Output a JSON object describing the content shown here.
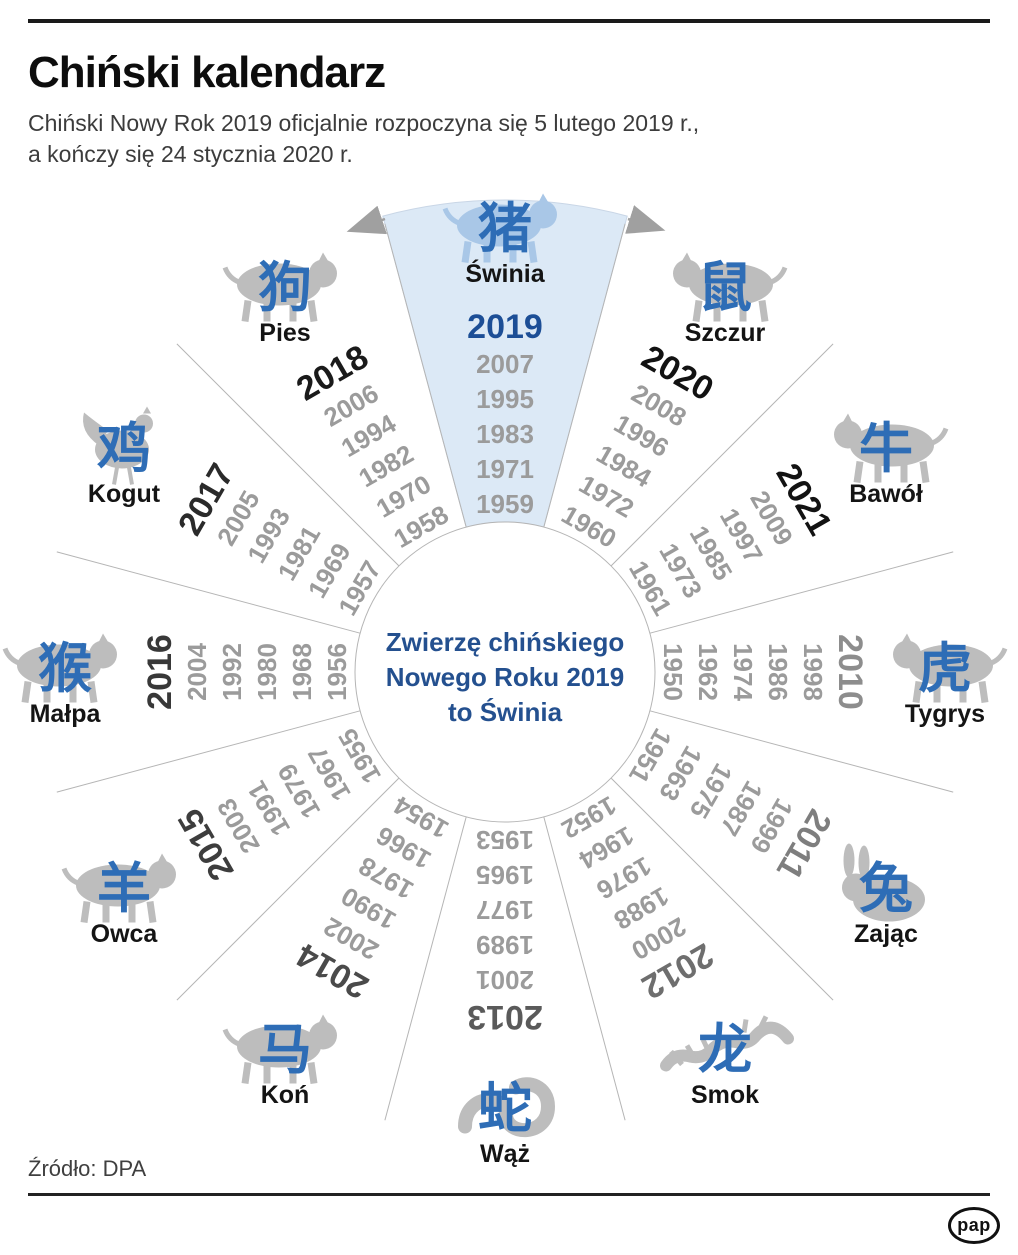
{
  "header": {
    "title": "Chiński kalendarz",
    "subtitle_line1": "Chiński Nowy Rok 2019 oficjalnie rozpoczyna się 5 lutego 2019 r.,",
    "subtitle_line2": "a kończy się 24 stycznia 2020 r."
  },
  "center": {
    "line1": "Zwierzę chińskiego",
    "line2": "Nowego Roku 2019",
    "line3": "to Świnia"
  },
  "footer": {
    "source": "Źródło: DPA",
    "logo": "pap"
  },
  "colors": {
    "accent_blue": "#2e6db6",
    "dark_blue": "#24508f",
    "wedge_blue": "#dce9f6",
    "pig_silhouette_blue": "#a9c7e7",
    "silhouette_gray": "#bdbdbd",
    "year_gray": "#9b9b9b",
    "line_gray": "#b5b5b5",
    "arrow_gray": "#a0a0a0"
  },
  "wheel": {
    "type": "radial-calendar-wheel",
    "highlighted_animal": "Świnia",
    "sectors": [
      {
        "name": "Świnia",
        "chinese": "猪",
        "angle": 0,
        "lead_year": "2019",
        "lead_color": "#1c4e96",
        "years": [
          "2007",
          "1995",
          "1983",
          "1971",
          "1959"
        ],
        "highlight": true,
        "silhouette": "pig"
      },
      {
        "name": "Szczur",
        "chinese": "鼠",
        "angle": 30,
        "lead_year": "2020",
        "lead_color": "#121212",
        "years": [
          "2008",
          "1996",
          "1984",
          "1972",
          "1960"
        ],
        "highlight": false,
        "silhouette": "rat"
      },
      {
        "name": "Bawół",
        "chinese": "牛",
        "angle": 60,
        "lead_year": "2021",
        "lead_color": "#121212",
        "years": [
          "2009",
          "1997",
          "1985",
          "1973",
          "1961"
        ],
        "highlight": false,
        "silhouette": "ox"
      },
      {
        "name": "Tygrys",
        "chinese": "虎",
        "angle": 90,
        "lead_year": "2010",
        "lead_color": "#8d8d8d",
        "years": [
          "1998",
          "1986",
          "1974",
          "1962",
          "1950"
        ],
        "highlight": false,
        "silhouette": "tiger"
      },
      {
        "name": "Zając",
        "chinese": "兔",
        "angle": 120,
        "lead_year": "2011",
        "lead_color": "#7e7e7e",
        "years": [
          "1999",
          "1987",
          "1975",
          "1963",
          "1951"
        ],
        "highlight": false,
        "silhouette": "rabbit"
      },
      {
        "name": "Smok",
        "chinese": "龙",
        "angle": 150,
        "lead_year": "2012",
        "lead_color": "#6e6e6e",
        "years": [
          "2000",
          "1988",
          "1976",
          "1964",
          "1952"
        ],
        "highlight": false,
        "silhouette": "dragon"
      },
      {
        "name": "Wąż",
        "chinese": "蛇",
        "angle": 180,
        "lead_year": "2013",
        "lead_color": "#5a5a5a",
        "years": [
          "2001",
          "1989",
          "1977",
          "1965",
          "1953"
        ],
        "highlight": false,
        "silhouette": "snake"
      },
      {
        "name": "Koń",
        "chinese": "马",
        "angle": 210,
        "lead_year": "2014",
        "lead_color": "#4a4a4a",
        "years": [
          "2002",
          "1990",
          "1978",
          "1966",
          "1954"
        ],
        "highlight": false,
        "silhouette": "horse"
      },
      {
        "name": "Owca",
        "chinese": "羊",
        "angle": 240,
        "lead_year": "2015",
        "lead_color": "#3d3d3d",
        "years": [
          "2003",
          "1991",
          "1979",
          "1967",
          "1955"
        ],
        "highlight": false,
        "silhouette": "sheep"
      },
      {
        "name": "Małpa",
        "chinese": "猴",
        "angle": 270,
        "lead_year": "2016",
        "lead_color": "#383838",
        "years": [
          "2004",
          "1992",
          "1980",
          "1968",
          "1956"
        ],
        "highlight": false,
        "silhouette": "monkey"
      },
      {
        "name": "Kogut",
        "chinese": "鸡",
        "angle": 300,
        "lead_year": "2017",
        "lead_color": "#2a2a2a",
        "years": [
          "2005",
          "1993",
          "1981",
          "1969",
          "1957"
        ],
        "highlight": false,
        "silhouette": "rooster"
      },
      {
        "name": "Pies",
        "chinese": "狗",
        "angle": 330,
        "lead_year": "2018",
        "lead_color": "#1a1a1a",
        "years": [
          "2006",
          "1994",
          "1982",
          "1970",
          "1958"
        ],
        "highlight": false,
        "silhouette": "dog"
      }
    ]
  }
}
